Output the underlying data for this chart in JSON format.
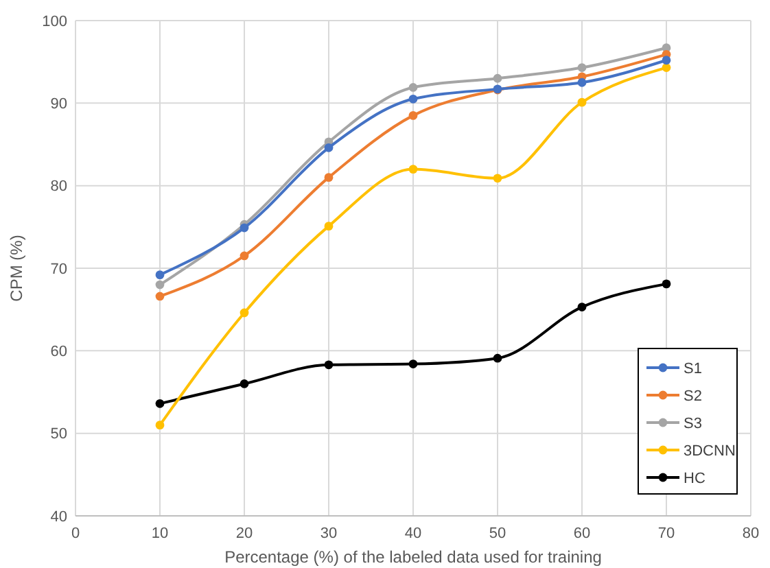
{
  "chart_data": {
    "type": "line",
    "xlabel": "Percentage (%) of the labeled data used for training",
    "ylabel": "CPM (%)",
    "x": [
      10,
      20,
      30,
      40,
      50,
      60,
      70
    ],
    "series": [
      {
        "name": "S1",
        "color": "#4472c4",
        "values": [
          69.2,
          74.9,
          84.6,
          90.5,
          91.7,
          92.5,
          95.2
        ]
      },
      {
        "name": "S2",
        "color": "#ed7d31",
        "values": [
          66.6,
          71.5,
          81,
          88.5,
          91.6,
          93.2,
          95.9
        ]
      },
      {
        "name": "S3",
        "color": "#a5a5a5",
        "values": [
          68,
          75.3,
          85.3,
          91.9,
          93,
          94.3,
          96.7
        ]
      },
      {
        "name": "3DCNN",
        "color": "#ffc000",
        "values": [
          51,
          64.6,
          75.1,
          82,
          80.9,
          90.1,
          94.3
        ]
      },
      {
        "name": "HC",
        "color": "#000000",
        "values": [
          53.6,
          56,
          58.3,
          58.4,
          59.1,
          65.3,
          68.1
        ]
      }
    ],
    "xlim": [
      0,
      80
    ],
    "xticks": [
      0,
      10,
      20,
      30,
      40,
      50,
      60,
      70,
      80
    ],
    "ylim": [
      40,
      100
    ],
    "yticks": [
      40,
      50,
      60,
      70,
      80,
      90,
      100
    ],
    "grid": true,
    "legend": "bottom right",
    "marker": "circle",
    "line_style": "solid"
  }
}
